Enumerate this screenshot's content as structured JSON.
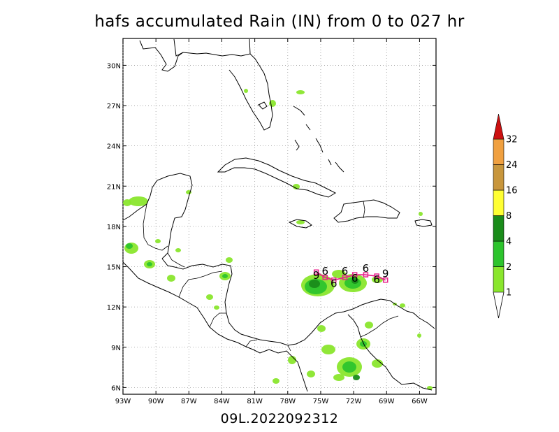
{
  "title": "hafs accumulated Rain (IN) from 0 to 027 hr",
  "footer": "09L.2022092312",
  "map": {
    "lon_range": [
      -93,
      -64.5
    ],
    "lat_range": [
      5.5,
      32
    ],
    "x_ticks": [
      "93W",
      "90W",
      "87W",
      "84W",
      "81W",
      "78W",
      "75W",
      "72W",
      "69W",
      "66W"
    ],
    "x_tick_values": [
      -93,
      -90,
      -87,
      -84,
      -81,
      -78,
      -75,
      -72,
      -69,
      -66
    ],
    "y_ticks": [
      "6N",
      "9N",
      "12N",
      "15N",
      "18N",
      "21N",
      "24N",
      "27N",
      "30N"
    ],
    "y_tick_values": [
      6,
      9,
      12,
      15,
      18,
      21,
      24,
      27,
      30
    ],
    "grid": true
  },
  "legend": {
    "labels": [
      "1",
      "2",
      "4",
      "8",
      "16",
      "24",
      "32"
    ],
    "colors": [
      "#8ae62d",
      "#2dc42d",
      "#1a8c1a",
      "#ffff33",
      "#c8963c",
      "#f0a040",
      "#cc1010"
    ]
  },
  "track": {
    "storm_symbol": "9",
    "points": [
      {
        "lon": -75.4,
        "lat": 14.6,
        "label": "9"
      },
      {
        "lon": -74.6,
        "lat": 14.2,
        "label": "6"
      },
      {
        "lon": -73.8,
        "lat": 14.0,
        "label": "6"
      },
      {
        "lon": -72.8,
        "lat": 14.2,
        "label": "6"
      },
      {
        "lon": -71.9,
        "lat": 14.4,
        "label": "6"
      },
      {
        "lon": -70.9,
        "lat": 14.4,
        "label": "6"
      },
      {
        "lon": -69.9,
        "lat": 14.3,
        "label": "6"
      },
      {
        "lon": -69.1,
        "lat": 14.0,
        "label": "9"
      }
    ],
    "color": "#e8248c"
  }
}
